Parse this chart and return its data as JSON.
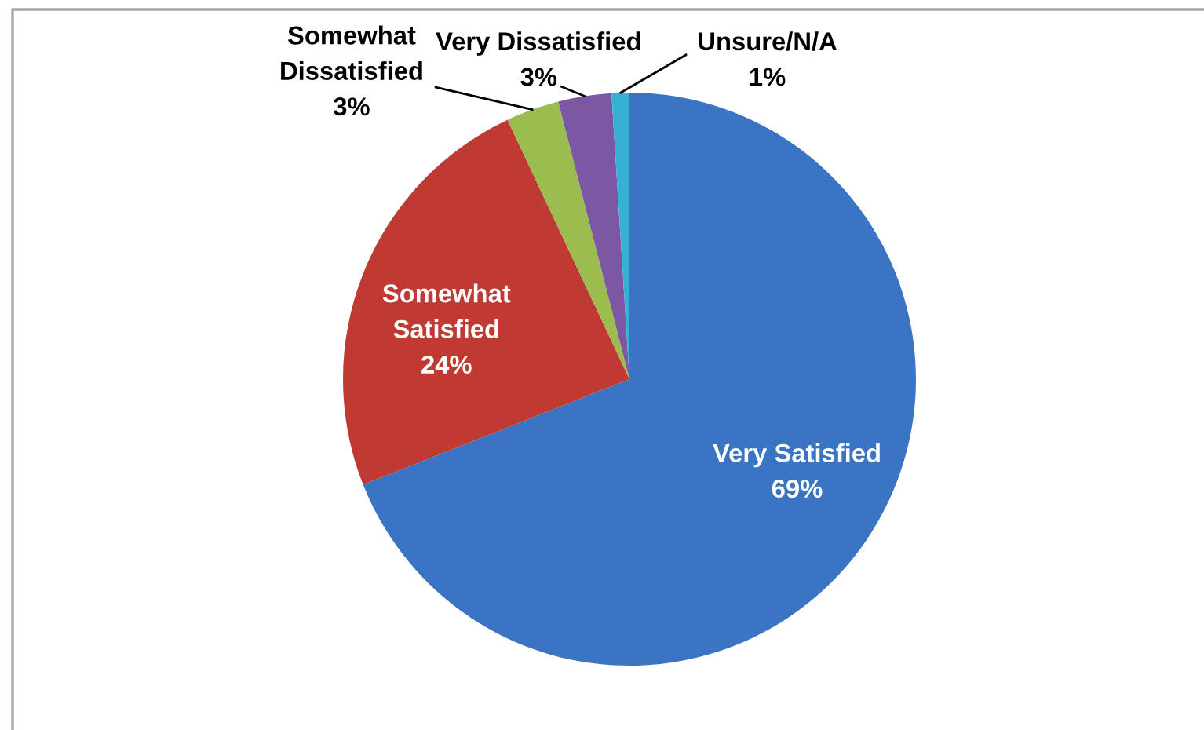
{
  "chart_data": {
    "type": "pie",
    "categories": [
      "Very Satisfied",
      "Somewhat Satisfied",
      "Somewhat Dissatisfied",
      "Very Dissatisfied",
      "Unsure/N/A"
    ],
    "values": [
      69,
      24,
      3,
      3,
      1
    ],
    "colors": [
      "#3a74c2",
      "#bf3a33",
      "#9bbd4f",
      "#7b57a4",
      "#38b0d6"
    ],
    "value_labels": [
      "69%",
      "24%",
      "3%",
      "3%",
      "1%"
    ]
  }
}
